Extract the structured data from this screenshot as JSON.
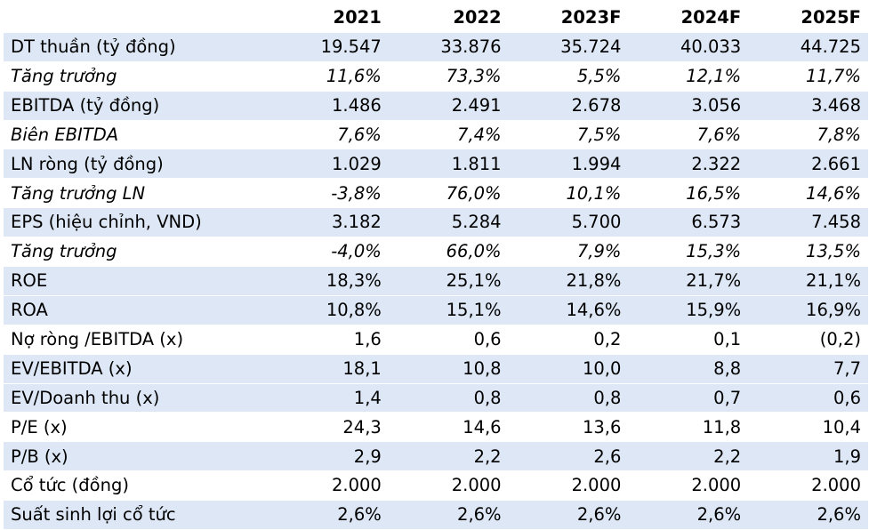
{
  "header": {
    "blank": "",
    "years": [
      "2021",
      "2022",
      "2023F",
      "2024F",
      "2025F"
    ]
  },
  "rows": [
    {
      "label": "DT thuần (tỷ đồng)",
      "values": [
        "19.547",
        "33.876",
        "35.724",
        "40.033",
        "44.725"
      ]
    },
    {
      "label": "Tăng trưởng",
      "values": [
        "11,6%",
        "73,3%",
        "5,5%",
        "12,1%",
        "11,7%"
      ]
    },
    {
      "label": "EBITDA (tỷ đồng)",
      "values": [
        "1.486",
        "2.491",
        "2.678",
        "3.056",
        "3.468"
      ]
    },
    {
      "label": "Biên EBITDA",
      "values": [
        "7,6%",
        "7,4%",
        "7,5%",
        "7,6%",
        "7,8%"
      ]
    },
    {
      "label": "LN ròng (tỷ đồng)",
      "values": [
        "1.029",
        "1.811",
        "1.994",
        "2.322",
        "2.661"
      ]
    },
    {
      "label": "Tăng trưởng LN",
      "values": [
        "-3,8%",
        "76,0%",
        "10,1%",
        "16,5%",
        "14,6%"
      ]
    },
    {
      "label": "EPS (hiệu chỉnh, VND)",
      "values": [
        "3.182",
        "5.284",
        "5.700",
        "6.573",
        "7.458"
      ]
    },
    {
      "label": "Tăng trưởng",
      "values": [
        "-4,0%",
        "66,0%",
        "7,9%",
        "15,3%",
        "13,5%"
      ]
    },
    {
      "label": "ROE",
      "values": [
        "18,3%",
        "25,1%",
        "21,8%",
        "21,7%",
        "21,1%"
      ]
    },
    {
      "label": "ROA",
      "values": [
        "10,8%",
        "15,1%",
        "14,6%",
        "15,9%",
        "16,9%"
      ]
    },
    {
      "label": "Nợ ròng /EBITDA (x)",
      "values": [
        "1,6",
        "0,6",
        "0,2",
        "0,1",
        "(0,2)"
      ]
    },
    {
      "label": "EV/EBITDA (x)",
      "values": [
        "18,1",
        "10,8",
        "10,0",
        "8,8",
        "7,7"
      ]
    },
    {
      "label": "EV/Doanh thu (x)",
      "values": [
        "1,4",
        "0,8",
        "0,8",
        "0,7",
        "0,6"
      ]
    },
    {
      "label": "P/E (x)",
      "values": [
        "24,3",
        "14,6",
        "13,6",
        "11,8",
        "10,4"
      ]
    },
    {
      "label": "P/B (x)",
      "values": [
        "2,9",
        "2,2",
        "2,6",
        "2,2",
        "1,9"
      ]
    },
    {
      "label": "Cổ tức (đồng)",
      "values": [
        "2.000",
        "2.000",
        "2.000",
        "2.000",
        "2.000"
      ]
    },
    {
      "label": "Suất sinh lợi cổ tức",
      "values": [
        "2,6%",
        "2,6%",
        "2,6%",
        "2,6%",
        "2,6%"
      ]
    }
  ],
  "colors": {
    "row_shade": "#dde7f5",
    "row_plain": "#ffffff",
    "text": "#000000"
  }
}
